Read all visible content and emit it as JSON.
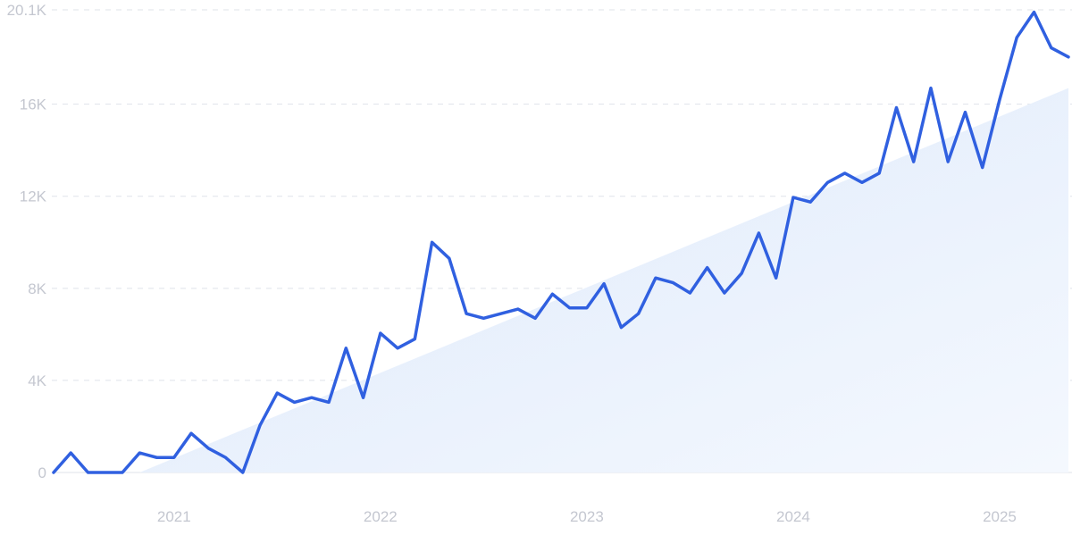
{
  "chart_data": {
    "type": "line",
    "title": "",
    "xlabel": "",
    "ylabel": "",
    "ylim": [
      0,
      20100
    ],
    "grid": true,
    "y_ticks": [
      {
        "value": 0,
        "label": "0"
      },
      {
        "value": 4000,
        "label": "4K"
      },
      {
        "value": 8000,
        "label": "8K"
      },
      {
        "value": 12000,
        "label": "12K"
      },
      {
        "value": 16000,
        "label": "16K"
      },
      {
        "value": 20100,
        "label": "20.1K"
      }
    ],
    "x_ticks": [
      {
        "value": "2021-01",
        "label": "2021"
      },
      {
        "value": "2022-01",
        "label": "2022"
      },
      {
        "value": "2023-01",
        "label": "2023"
      },
      {
        "value": "2024-01",
        "label": "2024"
      },
      {
        "value": "2025-01",
        "label": "2025"
      }
    ],
    "x": [
      "2020-06",
      "2020-07",
      "2020-08",
      "2020-09",
      "2020-10",
      "2020-11",
      "2020-12",
      "2021-01",
      "2021-02",
      "2021-03",
      "2021-04",
      "2021-05",
      "2021-06",
      "2021-07",
      "2021-08",
      "2021-09",
      "2021-10",
      "2021-11",
      "2021-12",
      "2022-01",
      "2022-02",
      "2022-03",
      "2022-04",
      "2022-05",
      "2022-06",
      "2022-07",
      "2022-08",
      "2022-09",
      "2022-10",
      "2022-11",
      "2022-12",
      "2023-01",
      "2023-02",
      "2023-03",
      "2023-04",
      "2023-05",
      "2023-06",
      "2023-07",
      "2023-08",
      "2023-09",
      "2023-10",
      "2023-11",
      "2023-12",
      "2024-01",
      "2024-02",
      "2024-03",
      "2024-04",
      "2024-05",
      "2024-06",
      "2024-07",
      "2024-08",
      "2024-09",
      "2024-10",
      "2024-11",
      "2024-12",
      "2025-01",
      "2025-02",
      "2025-03",
      "2025-04",
      "2025-05"
    ],
    "series": [
      {
        "values": [
          0,
          850,
          0,
          0,
          0,
          850,
          650,
          650,
          1700,
          1050,
          650,
          0,
          2050,
          3450,
          3050,
          3250,
          3050,
          5400,
          3250,
          6050,
          5400,
          5800,
          10000,
          9300,
          6900,
          6700,
          6900,
          7100,
          6700,
          7750,
          7150,
          7150,
          8200,
          6300,
          6900,
          8450,
          8250,
          7800,
          8900,
          7800,
          8650,
          10400,
          8450,
          11950,
          11750,
          12600,
          13000,
          12600,
          13000,
          15850,
          13500,
          16700,
          13500,
          15650,
          13250,
          16200,
          18900,
          20000,
          18450,
          18050
        ],
        "color": "#3060e0"
      }
    ],
    "trend": {
      "start": {
        "x": "2020-11",
        "y": 0
      },
      "end": {
        "x": "2025-05",
        "y": 16700
      },
      "color": "#dbe8fa"
    }
  }
}
